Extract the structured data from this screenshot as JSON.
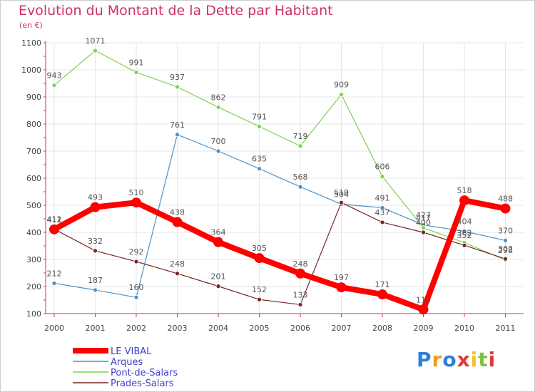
{
  "title": "Evolution du Montant de la Dette par Habitant",
  "unit_label": "(en €)",
  "logo": "Proxiti",
  "colors": {
    "title": "#cc3366",
    "axis": "#cc3366",
    "grid": "#e6e6e6"
  },
  "chart_data": {
    "type": "line",
    "title": "Evolution du Montant de la Dette par Habitant",
    "ylabel": "(en €)",
    "xlabel": "",
    "x": [
      "2000",
      "2001",
      "2002",
      "2003",
      "2004",
      "2005",
      "2006",
      "2007",
      "2008",
      "2009",
      "2010",
      "2011"
    ],
    "ylim": [
      100,
      1100
    ],
    "yticks": [
      100,
      200,
      300,
      400,
      500,
      600,
      700,
      800,
      900,
      1000,
      1100
    ],
    "grid": true,
    "legend_position": "bottom-left",
    "series": [
      {
        "name": "LE VIBAL",
        "color": "#ff0000",
        "values": [
          411,
          493,
          510,
          438,
          364,
          305,
          248,
          197,
          171,
          115,
          518,
          488
        ]
      },
      {
        "name": "Arques",
        "color": "#4a90c8",
        "values": [
          212,
          187,
          160,
          761,
          700,
          635,
          568,
          504,
          491,
          427,
          404,
          370
        ]
      },
      {
        "name": "Pont-de-Salars",
        "color": "#7dd34a",
        "values": [
          943,
          1071,
          991,
          937,
          862,
          791,
          719,
          909,
          606,
          417,
          362,
          298
        ]
      },
      {
        "name": "Prades-Salars",
        "color": "#7a2424",
        "values": [
          412,
          332,
          292,
          248,
          201,
          152,
          133,
          510,
          437,
          400,
          352,
          302
        ]
      }
    ]
  }
}
